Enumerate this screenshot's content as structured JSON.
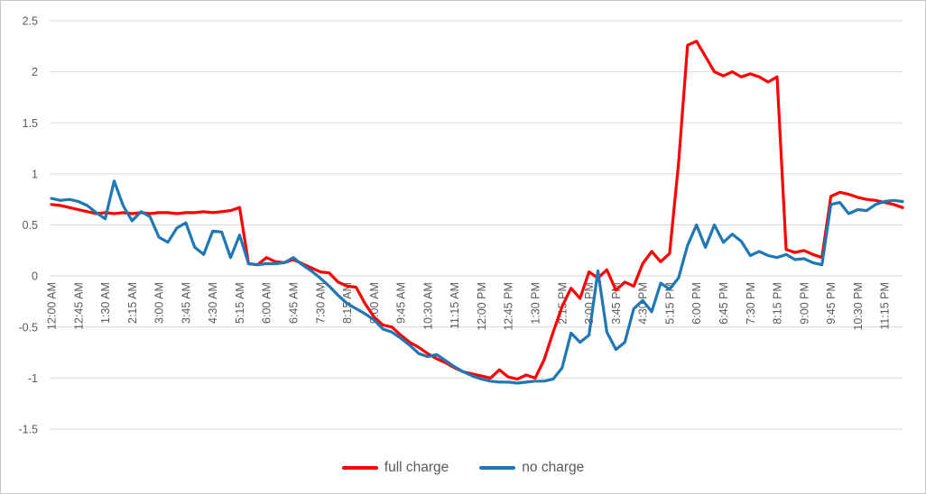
{
  "chart_data": {
    "type": "line",
    "x_labels": [
      "12:00 AM",
      "12:45 AM",
      "1:30 AM",
      "2:15 AM",
      "3:00 AM",
      "3:45 AM",
      "4:30 AM",
      "5:15 AM",
      "6:00 AM",
      "6:45 AM",
      "7:30 AM",
      "8:15 AM",
      "9:00 AM",
      "9:45 AM",
      "10:30 AM",
      "11:15 AM",
      "12:00 PM",
      "12:45 PM",
      "1:30 PM",
      "2:15 PM",
      "3:00 PM",
      "3:45 PM",
      "4:30 PM",
      "5:15 PM",
      "6:00 PM",
      "6:45 PM",
      "7:30 PM",
      "8:15 PM",
      "9:00 PM",
      "9:45 PM",
      "10:30 PM",
      "11:15 PM"
    ],
    "points_per_label": 3,
    "y_tick_labels": [
      "2.5",
      "2",
      "1.5",
      "1",
      "0.5",
      "0",
      "-0.5",
      "-1",
      "-1.5"
    ],
    "ylim": [
      -1.5,
      2.5
    ],
    "grid": true,
    "legend_position": "bottom",
    "series": [
      {
        "name": "full charge",
        "color": "#FF0000",
        "values": [
          0.7,
          0.69,
          0.67,
          0.65,
          0.63,
          0.61,
          0.62,
          0.61,
          0.62,
          0.61,
          0.62,
          0.61,
          0.62,
          0.62,
          0.61,
          0.62,
          0.62,
          0.63,
          0.62,
          0.63,
          0.64,
          0.67,
          0.12,
          0.11,
          0.18,
          0.14,
          0.13,
          0.16,
          0.12,
          0.08,
          0.04,
          0.03,
          -0.06,
          -0.1,
          -0.11,
          -0.27,
          -0.4,
          -0.48,
          -0.5,
          -0.58,
          -0.65,
          -0.7,
          -0.76,
          -0.81,
          -0.85,
          -0.9,
          -0.94,
          -0.96,
          -0.98,
          -1.0,
          -0.92,
          -0.99,
          -1.01,
          -0.97,
          -1.0,
          -0.82,
          -0.55,
          -0.3,
          -0.12,
          -0.22,
          0.04,
          -0.02,
          0.06,
          -0.14,
          -0.06,
          -0.1,
          0.12,
          0.24,
          0.14,
          0.22,
          1.1,
          2.26,
          2.3,
          2.15,
          2.0,
          1.96,
          2.0,
          1.95,
          1.98,
          1.95,
          1.9,
          1.95,
          0.26,
          0.23,
          0.25,
          0.21,
          0.18,
          0.78,
          0.82,
          0.8,
          0.77,
          0.75,
          0.74,
          0.72,
          0.7,
          0.67
        ]
      },
      {
        "name": "no charge",
        "color": "#1F77B4",
        "values": [
          0.76,
          0.74,
          0.75,
          0.73,
          0.69,
          0.62,
          0.56,
          0.93,
          0.69,
          0.54,
          0.63,
          0.58,
          0.38,
          0.33,
          0.47,
          0.52,
          0.28,
          0.21,
          0.44,
          0.43,
          0.18,
          0.4,
          0.12,
          0.11,
          0.12,
          0.12,
          0.13,
          0.18,
          0.11,
          0.05,
          -0.02,
          -0.1,
          -0.19,
          -0.27,
          -0.32,
          -0.37,
          -0.43,
          -0.52,
          -0.55,
          -0.61,
          -0.68,
          -0.76,
          -0.79,
          -0.77,
          -0.83,
          -0.89,
          -0.94,
          -0.98,
          -1.01,
          -1.03,
          -1.04,
          -1.04,
          -1.05,
          -1.04,
          -1.03,
          -1.03,
          -1.01,
          -0.9,
          -0.56,
          -0.65,
          -0.58,
          0.05,
          -0.55,
          -0.72,
          -0.65,
          -0.32,
          -0.24,
          -0.35,
          -0.07,
          -0.13,
          -0.02,
          0.3,
          0.5,
          0.28,
          0.5,
          0.33,
          0.41,
          0.34,
          0.2,
          0.24,
          0.2,
          0.18,
          0.21,
          0.16,
          0.17,
          0.13,
          0.11,
          0.7,
          0.72,
          0.61,
          0.65,
          0.64,
          0.7,
          0.73,
          0.74,
          0.73
        ]
      }
    ]
  },
  "styles": {
    "grid_color": "#D9D9D9",
    "tick_label_color": "#595959",
    "legend_text_color": "#595959",
    "background": "#FFFFFF",
    "border_color": "#C6C6C6"
  }
}
